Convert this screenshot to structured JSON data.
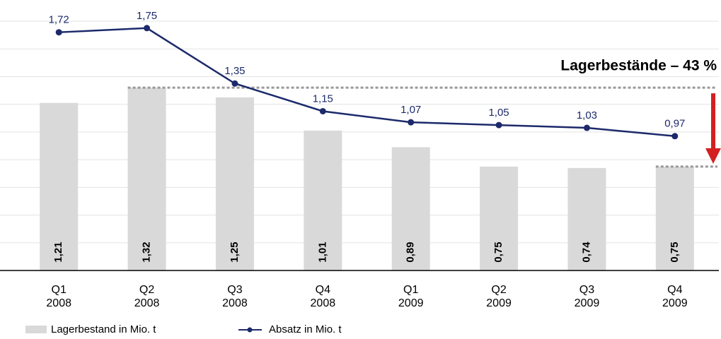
{
  "chart_data": {
    "type": "bar-line",
    "annotation": "Lagerbestände – 43 %",
    "categories": [
      "Q1 2008",
      "Q2 2008",
      "Q3 2008",
      "Q4 2008",
      "Q1 2009",
      "Q2 2009",
      "Q3 2009",
      "Q4 2009"
    ],
    "series": [
      {
        "name": "Lagerbestand in Mio. t",
        "type": "bar",
        "color": "#d9d9d9",
        "values": [
          1.21,
          1.32,
          1.25,
          1.01,
          0.89,
          0.75,
          0.74,
          0.75
        ],
        "value_labels": [
          "1,21",
          "1,32",
          "1,25",
          "1,01",
          "0,89",
          "0,75",
          "0,74",
          "0,75"
        ]
      },
      {
        "name": "Absatz in Mio. t",
        "type": "line",
        "color": "#1c2a6b",
        "values": [
          1.72,
          1.75,
          1.35,
          1.15,
          1.07,
          1.05,
          1.03,
          0.97
        ],
        "value_labels": [
          "1,72",
          "1,75",
          "1,35",
          "1,15",
          "1,07",
          "1,05",
          "1,03",
          "0,97"
        ]
      }
    ],
    "ylim": [
      0,
      1.8
    ],
    "yticks": [
      0,
      0.2,
      0.4,
      0.6,
      0.8,
      1.0,
      1.2,
      1.4,
      1.6,
      1.8
    ],
    "grid": true
  }
}
